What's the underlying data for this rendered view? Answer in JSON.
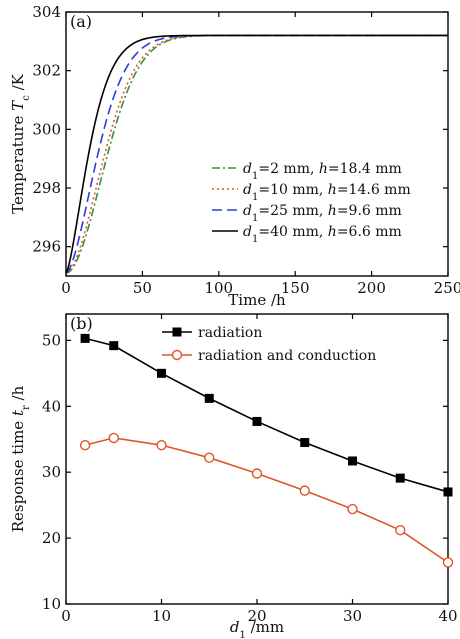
{
  "chart_data": [
    {
      "panel_label": "(a)",
      "type": "line",
      "xlabel": "Time /h",
      "ylabel_parts": [
        "Temperature ",
        "T",
        "c",
        " /K"
      ],
      "xlim": [
        0,
        250
      ],
      "ylim": [
        295,
        304
      ],
      "xticks": [
        0,
        50,
        100,
        150,
        200,
        250
      ],
      "yticks": [
        296,
        298,
        300,
        302,
        304
      ],
      "legend_location": "lower-right",
      "series": [
        {
          "name": "d1=2 mm, h=18.4 mm",
          "legend_parts": [
            "d",
            "1",
            "=2 mm, ",
            "h",
            "=18.4 mm"
          ],
          "color": "#3a8f3a",
          "dash": "8,3,2,3",
          "model": {
            "start": 295.1,
            "end": 303.2,
            "tau": 33,
            "shape": 1.9
          }
        },
        {
          "name": "d1=10 mm, h=14.6 mm",
          "legend_parts": [
            "d",
            "1",
            "=10 mm, ",
            "h",
            "=14.6 mm"
          ],
          "color": "#e0552a",
          "dash": "2,3",
          "model": {
            "start": 295.1,
            "end": 303.2,
            "tau": 31,
            "shape": 1.8
          }
        },
        {
          "name": "d1=25 mm, h=9.6 mm",
          "legend_parts": [
            "d",
            "1",
            "=25 mm, ",
            "h",
            "=9.6 mm"
          ],
          "color": "#2a3fd8",
          "dash": "10,5",
          "model": {
            "start": 295.1,
            "end": 303.2,
            "tau": 26,
            "shape": 1.65
          }
        },
        {
          "name": "d1=40 mm, h=6.6 mm",
          "legend_parts": [
            "d",
            "1",
            "=40 mm, ",
            "h",
            "=6.6 mm"
          ],
          "color": "#000000",
          "dash": "",
          "model": {
            "start": 295.1,
            "end": 303.2,
            "tau": 19,
            "shape": 1.45
          }
        }
      ]
    },
    {
      "panel_label": "(b)",
      "type": "line",
      "xlabel_parts": [
        "d",
        "1",
        " /mm"
      ],
      "ylabel_parts": [
        "Response time ",
        "t",
        "r",
        " /h"
      ],
      "xlim": [
        0,
        40
      ],
      "ylim": [
        10,
        54
      ],
      "xticks": [
        0,
        10,
        20,
        30,
        40
      ],
      "yticks": [
        10,
        20,
        30,
        40,
        50
      ],
      "legend_location": "top-right",
      "x": [
        2,
        5,
        10,
        15,
        20,
        25,
        30,
        35,
        40
      ],
      "series": [
        {
          "name": "radiation",
          "color": "#000000",
          "marker": "filled-square",
          "values": [
            50.3,
            49.2,
            45.0,
            41.2,
            37.7,
            34.5,
            31.7,
            29.1,
            27.0
          ]
        },
        {
          "name": "radiation and conduction",
          "color": "#e0552a",
          "marker": "open-circle",
          "values": [
            34.1,
            35.2,
            34.1,
            32.2,
            29.8,
            27.2,
            24.4,
            21.2,
            16.3
          ]
        }
      ]
    }
  ]
}
